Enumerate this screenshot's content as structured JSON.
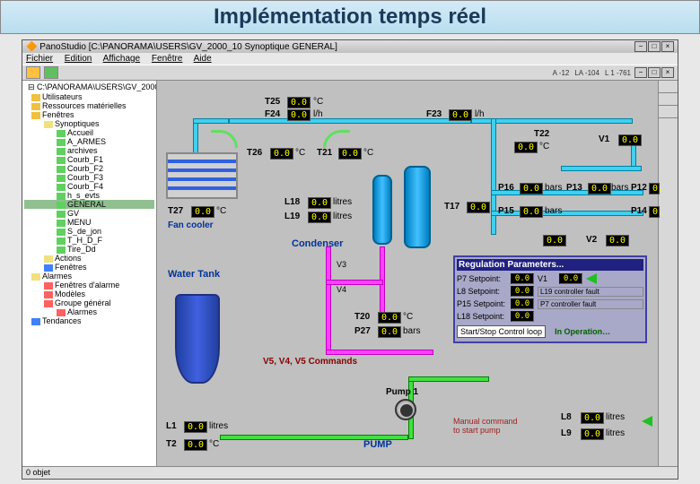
{
  "slide": {
    "title": "Implémentation temps réel"
  },
  "window": {
    "title": "PanoStudio  [C:\\PANORAMA\\USERS\\GV_2000_10   Synoptique GENERAL]",
    "menus": [
      "Fichier",
      "Edition",
      "Affichage",
      "Fenêtre",
      "Aide"
    ],
    "status": [
      "A  -12",
      "LA  -104",
      "L  1 -761"
    ]
  },
  "tree": {
    "root": "C:\\PANORAMA\\USERS\\GV_2000",
    "items": [
      {
        "t": "Utilisateurs",
        "c": "y",
        "l": 0
      },
      {
        "t": "Ressources matérielles",
        "c": "y",
        "l": 0
      },
      {
        "t": "Fenêtres",
        "c": "y",
        "l": 0
      },
      {
        "t": "Synoptiques",
        "c": "f",
        "l": 1
      },
      {
        "t": "Accueil",
        "c": "g",
        "l": 2
      },
      {
        "t": "A_ARMES",
        "c": "g",
        "l": 2
      },
      {
        "t": "archives",
        "c": "g",
        "l": 2
      },
      {
        "t": "Courb_F1",
        "c": "g",
        "l": 2
      },
      {
        "t": "Courb_F2",
        "c": "g",
        "l": 2
      },
      {
        "t": "Courb_F3",
        "c": "g",
        "l": 2
      },
      {
        "t": "Courb_F4",
        "c": "g",
        "l": 2
      },
      {
        "t": "h_s_evts",
        "c": "g",
        "l": 2
      },
      {
        "t": "GENERAL",
        "c": "g",
        "l": 2,
        "sel": true
      },
      {
        "t": "GV",
        "c": "g",
        "l": 2
      },
      {
        "t": "MENU",
        "c": "g",
        "l": 2
      },
      {
        "t": "S_de_jon",
        "c": "g",
        "l": 2
      },
      {
        "t": "T_H_D_F",
        "c": "g",
        "l": 2
      },
      {
        "t": "Tire_Dd",
        "c": "g",
        "l": 2
      },
      {
        "t": "Actions",
        "c": "f",
        "l": 1
      },
      {
        "t": "Fenêtres",
        "c": "b",
        "l": 1
      },
      {
        "t": "Alarmes",
        "c": "f",
        "l": 0
      },
      {
        "t": "Fenêtres d'alarme",
        "c": "r",
        "l": 1
      },
      {
        "t": "Modèles",
        "c": "r",
        "l": 1
      },
      {
        "t": "Groupe général",
        "c": "r",
        "l": 1
      },
      {
        "t": "Alarmes",
        "c": "r",
        "l": 2
      },
      {
        "t": "Tendances",
        "c": "b",
        "l": 0
      }
    ]
  },
  "synoptic": {
    "labels": {
      "fancooler": "Fan cooler",
      "condenser": "Condenser",
      "watertank": "Water Tank",
      "pump1": "Pump 1",
      "pump": "PUMP",
      "v5cmd": "V5, V4, V5 Commands",
      "manual": "Manual command to start pump"
    },
    "points": {
      "T25": {
        "v": "0.0",
        "u": "°C"
      },
      "F24": {
        "v": "0.0",
        "u": "l/h"
      },
      "F23": {
        "v": "0.0",
        "u": "l/h"
      },
      "T26": {
        "v": "0.0",
        "u": "°C"
      },
      "T21": {
        "v": "0.0",
        "u": "°C"
      },
      "T22": {
        "v": "0.0",
        "u": "°C"
      },
      "T27": {
        "v": "0.0",
        "u": "°C"
      },
      "L18": {
        "v": "0.0",
        "u": "litres"
      },
      "L19": {
        "v": "0.0",
        "u": "litres"
      },
      "T17": {
        "v": "0.0",
        "u": ""
      },
      "P16": {
        "v": "0.0",
        "u": "bars"
      },
      "P13": {
        "v": "0.0",
        "u": "bars"
      },
      "P12": {
        "v": "0."
      },
      "P15": {
        "v": "0.0",
        "u": "bars"
      },
      "P14": {
        "v": "0."
      },
      "V1": {
        "v": "0.0"
      },
      "V2": {
        "v": "0.0"
      },
      "T20": {
        "v": "0.0",
        "u": "°C"
      },
      "P27": {
        "v": "0.0",
        "u": "bars"
      },
      "L1": {
        "v": "0.0",
        "u": "litres"
      },
      "T2": {
        "v": "0.0",
        "u": "°C"
      },
      "L8": {
        "v": "0.0",
        "u": "litres"
      },
      "L9": {
        "v": "0.0",
        "u": "litres"
      }
    },
    "reg": {
      "title": "Regulation Parameters...",
      "rows": [
        {
          "n": "P7 Setpoint:",
          "v": "0.0",
          "n2": "V1",
          "v2": "0.0"
        },
        {
          "n": "L8 Setpoint:",
          "v": "0.0",
          "f": "L19 controller fault"
        },
        {
          "n": "P15 Setpoint:",
          "v": "0.0",
          "f": "P7 controller fault"
        },
        {
          "n": "L18 Setpoint:",
          "v": "0.0"
        }
      ],
      "btn": "Start/Stop Control loop",
      "status": "In Operation…"
    }
  },
  "statusbar": {
    "left": "0 objet"
  },
  "colors": {
    "cyan": "#40d0f0",
    "magenta": "#ff40ff",
    "green": "#40e040",
    "blue": "#4060e0",
    "bg": "#c0c0c0",
    "accent": "#003399"
  }
}
